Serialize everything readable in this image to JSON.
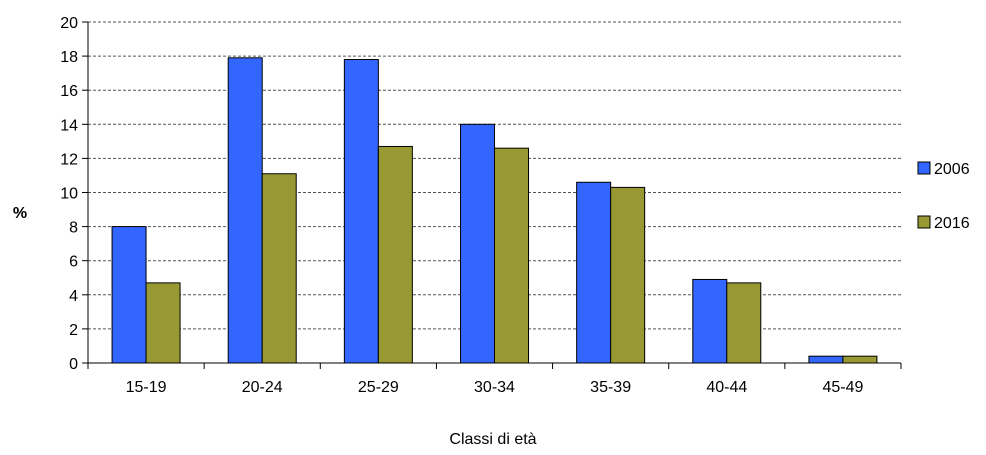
{
  "chart_data": {
    "type": "bar",
    "title": "",
    "xlabel": "Classi di età",
    "ylabel": "%",
    "ylim": [
      0,
      20
    ],
    "yticks": [
      0,
      2,
      4,
      6,
      8,
      10,
      12,
      14,
      16,
      18,
      20
    ],
    "categories": [
      "15-19",
      "20-24",
      "25-29",
      "30-34",
      "35-39",
      "40-44",
      "45-49"
    ],
    "series": [
      {
        "name": "2006",
        "color": "#3366ff",
        "values": [
          8.0,
          17.9,
          17.8,
          14.0,
          10.6,
          4.9,
          0.4
        ]
      },
      {
        "name": "2016",
        "color": "#999933",
        "values": [
          4.7,
          11.1,
          12.7,
          12.6,
          10.3,
          4.7,
          0.4
        ]
      }
    ],
    "grid": true,
    "legend_position": "right"
  }
}
